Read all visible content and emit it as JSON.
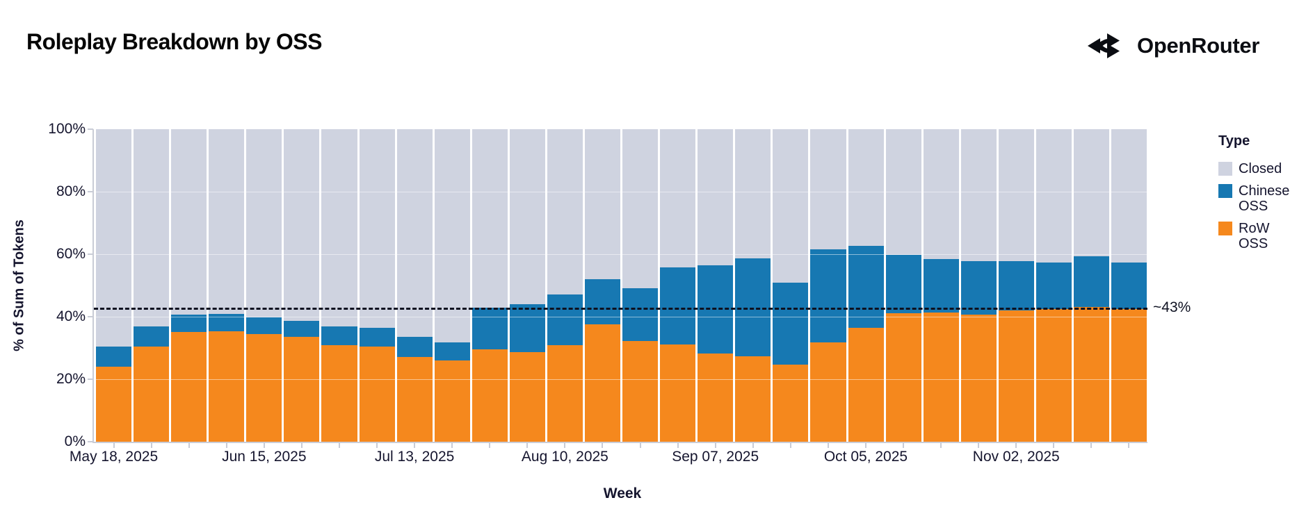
{
  "header": {
    "title": "Roleplay Breakdown by OSS",
    "brand": "OpenRouter"
  },
  "chart_data": {
    "type": "bar",
    "stacked": true,
    "title": "Roleplay Breakdown by OSS",
    "xlabel": "Week",
    "ylabel": "% of Sum of Tokens",
    "ylim": [
      0,
      100
    ],
    "grid": "horizontal-subtle",
    "legend_position": "right",
    "categories": [
      "May 18, 2025",
      "May 25, 2025",
      "Jun 01, 2025",
      "Jun 08, 2025",
      "Jun 15, 2025",
      "Jun 22, 2025",
      "Jun 29, 2025",
      "Jul 06, 2025",
      "Jul 13, 2025",
      "Jul 20, 2025",
      "Jul 27, 2025",
      "Aug 03, 2025",
      "Aug 10, 2025",
      "Aug 17, 2025",
      "Aug 24, 2025",
      "Aug 31, 2025",
      "Sep 07, 2025",
      "Sep 14, 2025",
      "Sep 21, 2025",
      "Sep 28, 2025",
      "Oct 05, 2025",
      "Oct 12, 2025",
      "Oct 19, 2025",
      "Oct 26, 2025",
      "Nov 02, 2025",
      "Nov 09, 2025",
      "Nov 16, 2025",
      "Nov 23, 2025"
    ],
    "series": [
      {
        "name": "RoW OSS",
        "color": "#F5881D",
        "values": [
          24.0,
          30.5,
          35.2,
          35.4,
          34.4,
          33.5,
          30.8,
          30.5,
          27.1,
          26.0,
          29.6,
          28.6,
          30.9,
          37.6,
          32.3,
          31.2,
          28.3,
          27.4,
          24.6,
          31.8,
          36.5,
          41.0,
          41.3,
          40.7,
          41.9,
          42.4,
          43.1,
          42.4
        ]
      },
      {
        "name": "Chinese OSS",
        "color": "#1778B2",
        "values": [
          6.5,
          6.3,
          5.5,
          5.6,
          5.3,
          5.2,
          6.1,
          5.9,
          6.5,
          5.7,
          13.2,
          15.3,
          16.2,
          14.4,
          16.8,
          24.6,
          28.2,
          31.2,
          26.3,
          29.8,
          26.2,
          18.7,
          17.1,
          17.1,
          15.9,
          14.9,
          16.2,
          14.9
        ]
      },
      {
        "name": "Closed",
        "color": "#CFD3E0",
        "values": [
          69.5,
          63.2,
          59.3,
          59.0,
          60.3,
          61.3,
          63.1,
          63.6,
          66.4,
          68.3,
          57.2,
          56.1,
          52.9,
          48.0,
          50.9,
          44.2,
          43.5,
          41.4,
          49.1,
          38.4,
          37.3,
          40.3,
          41.6,
          42.2,
          42.2,
          42.7,
          40.7,
          42.7
        ]
      }
    ],
    "y_ticks": {
      "values": [
        100,
        80,
        60,
        40,
        20,
        0
      ],
      "labels": [
        "100%",
        "80%",
        "60%",
        "40%",
        "20%",
        "0%"
      ]
    },
    "x_tick_indices": [
      0,
      4,
      8,
      12,
      16,
      20,
      24
    ],
    "gridline_values": [
      80,
      60,
      40,
      20
    ],
    "annotation": {
      "label": "~43%",
      "value": 43,
      "style": "dashed"
    },
    "legend": {
      "title": "Type",
      "items": [
        {
          "label": "Closed",
          "color": "#CFD3E0"
        },
        {
          "label": "Chinese OSS",
          "color": "#1778B2"
        },
        {
          "label": "RoW OSS",
          "color": "#F5881D"
        }
      ]
    }
  }
}
